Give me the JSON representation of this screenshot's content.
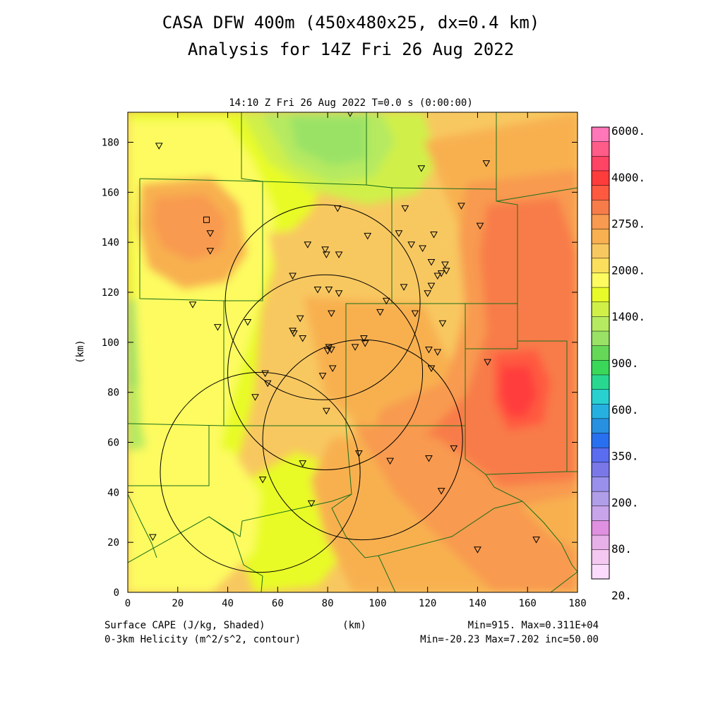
{
  "title": {
    "line1": "CASA DFW 400m (450x480x25, dx=0.4 km)",
    "line2": "Analysis for 14Z Fri 26 Aug 2022"
  },
  "subtitle": "14:10 Z Fri 26 Aug 2022    T=0.0 s (0:00:00)",
  "axes": {
    "xlabel": "(km)",
    "ylabel": "(km)",
    "xlim": [
      0,
      180
    ],
    "ylim": [
      0,
      192
    ],
    "xticks": [
      "0",
      "20",
      "40",
      "60",
      "80",
      "100",
      "120",
      "140",
      "160",
      "180"
    ],
    "yticks": [
      "0",
      "20",
      "40",
      "60",
      "80",
      "100",
      "120",
      "140",
      "160",
      "180"
    ]
  },
  "colorbar": {
    "labels": [
      "6000.",
      "4000.",
      "2750.",
      "2000.",
      "1400.",
      "900.",
      "600.",
      "350.",
      "200.",
      "80.",
      "20."
    ],
    "colors_top_to_bottom": [
      "#ff77b8",
      "#ff5c8a",
      "#ff4466",
      "#ff3c3c",
      "#ff5a40",
      "#f87c4a",
      "#f89a50",
      "#f8b050",
      "#f8c860",
      "#fbdf5c",
      "#fdfb60",
      "#e8fb28",
      "#d0f048",
      "#b6ea60",
      "#9ae266",
      "#66d858",
      "#3ad858",
      "#28d890",
      "#28d0d0",
      "#26b0e0",
      "#2890e0",
      "#2870f0",
      "#5a6cf0",
      "#7a78e8",
      "#9890ea",
      "#b09ee8",
      "#c8a4ea",
      "#e090e0",
      "#e8b0e8",
      "#f4c8f0",
      "#fcdcfc"
    ]
  },
  "footer": {
    "left1": "Surface CAPE (J/kg, Shaded)",
    "left2": "0-3km Helicity (m^2/s^2, contour)",
    "center": "(km)",
    "right1": "Min=915. Max=0.311E+04",
    "right2": "Min=-20.23 Max=7.202 inc=50.00"
  },
  "map_data": {
    "radar_circles_km": [
      {
        "cx": 78,
        "cy": 116,
        "r": 39
      },
      {
        "cx": 79,
        "cy": 88,
        "r": 39
      },
      {
        "cx": 94,
        "cy": 61,
        "r": 40
      },
      {
        "cx": 53,
        "cy": 48,
        "r": 40
      }
    ],
    "station_markers_km": [
      [
        12.5,
        178.5
      ],
      [
        89,
        191.5
      ],
      [
        117.5,
        169.5
      ],
      [
        143.5,
        171.5
      ],
      [
        33,
        143.5
      ],
      [
        33,
        136.5
      ],
      [
        84,
        153.5
      ],
      [
        111,
        153.5
      ],
      [
        133.5,
        154.5
      ],
      [
        108.5,
        143.5
      ],
      [
        122.5,
        143
      ],
      [
        141,
        146.5
      ],
      [
        96,
        142.5
      ],
      [
        72,
        139
      ],
      [
        79,
        137
      ],
      [
        79.5,
        135
      ],
      [
        84.5,
        135
      ],
      [
        113.5,
        139
      ],
      [
        118,
        137.5
      ],
      [
        121.5,
        132
      ],
      [
        127,
        131
      ],
      [
        127.5,
        128.5
      ],
      [
        125.5,
        127.5
      ],
      [
        124,
        126.5
      ],
      [
        66,
        126.5
      ],
      [
        76,
        121
      ],
      [
        80.5,
        121
      ],
      [
        84.5,
        119.5
      ],
      [
        110.5,
        122
      ],
      [
        120,
        119.5
      ],
      [
        121.5,
        122.5
      ],
      [
        103.5,
        116.5
      ],
      [
        26,
        115
      ],
      [
        81.5,
        111.5
      ],
      [
        101,
        112
      ],
      [
        115,
        111.5
      ],
      [
        69,
        109.5
      ],
      [
        48,
        108
      ],
      [
        126,
        107.5
      ],
      [
        36,
        106
      ],
      [
        66,
        104.5
      ],
      [
        66.5,
        103.5
      ],
      [
        70,
        101.5
      ],
      [
        94.5,
        101.5
      ],
      [
        95,
        99.5
      ],
      [
        80.5,
        98
      ],
      [
        81.5,
        97
      ],
      [
        80,
        96.5
      ],
      [
        91,
        98
      ],
      [
        120.5,
        97
      ],
      [
        124,
        96
      ],
      [
        144,
        92
      ],
      [
        121.5,
        89.5
      ],
      [
        82,
        89.5
      ],
      [
        78,
        86.5
      ],
      [
        55,
        87.5
      ],
      [
        56,
        83.5
      ],
      [
        51,
        78
      ],
      [
        79.5,
        72.5
      ],
      [
        130.5,
        57.5
      ],
      [
        92.5,
        55.5
      ],
      [
        120.5,
        53.5
      ],
      [
        105,
        52.5
      ],
      [
        70,
        51.5
      ],
      [
        54,
        45
      ],
      [
        125.5,
        40.5
      ],
      [
        73.5,
        35.5
      ],
      [
        10,
        22
      ],
      [
        140,
        17
      ],
      [
        163.5,
        21
      ]
    ],
    "square_marker_km": [
      31.5,
      149
    ]
  }
}
